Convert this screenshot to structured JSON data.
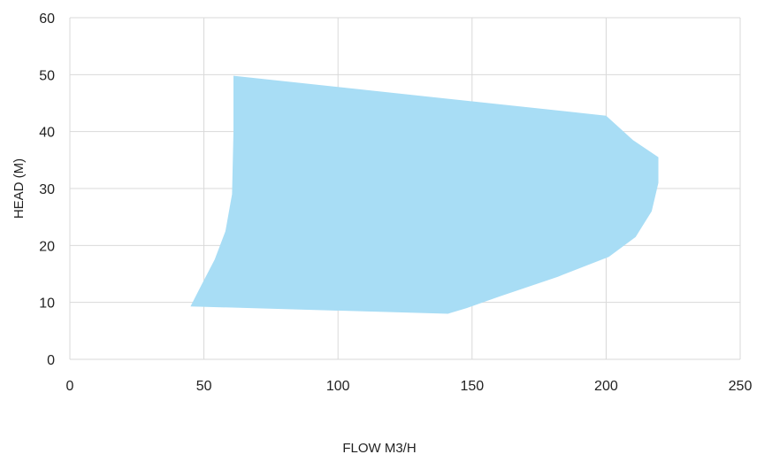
{
  "chart_data": {
    "type": "area",
    "xlabel": "FLOW M3/H",
    "ylabel": "HEAD (M)",
    "xlim": [
      0,
      250
    ],
    "ylim": [
      0,
      60
    ],
    "x_ticks": [
      0,
      50,
      100,
      150,
      200,
      250
    ],
    "y_ticks": [
      0,
      10,
      20,
      30,
      40,
      50,
      60
    ],
    "grid": true,
    "legend": "none",
    "fill_color": "#a8ddf5",
    "grid_color": "#d9d9d9",
    "region": [
      {
        "x": 61,
        "y": 49.8
      },
      {
        "x": 200,
        "y": 42.8
      },
      {
        "x": 210,
        "y": 38.5
      },
      {
        "x": 219.5,
        "y": 35.5
      },
      {
        "x": 219.5,
        "y": 31
      },
      {
        "x": 217,
        "y": 26
      },
      {
        "x": 211,
        "y": 21.5
      },
      {
        "x": 201,
        "y": 18
      },
      {
        "x": 182,
        "y": 14.5
      },
      {
        "x": 160,
        "y": 11
      },
      {
        "x": 148,
        "y": 9
      },
      {
        "x": 141,
        "y": 8
      },
      {
        "x": 45,
        "y": 9.3
      },
      {
        "x": 49,
        "y": 13
      },
      {
        "x": 54,
        "y": 17.5
      },
      {
        "x": 58,
        "y": 22.5
      },
      {
        "x": 60.5,
        "y": 29
      },
      {
        "x": 61,
        "y": 40
      }
    ]
  }
}
